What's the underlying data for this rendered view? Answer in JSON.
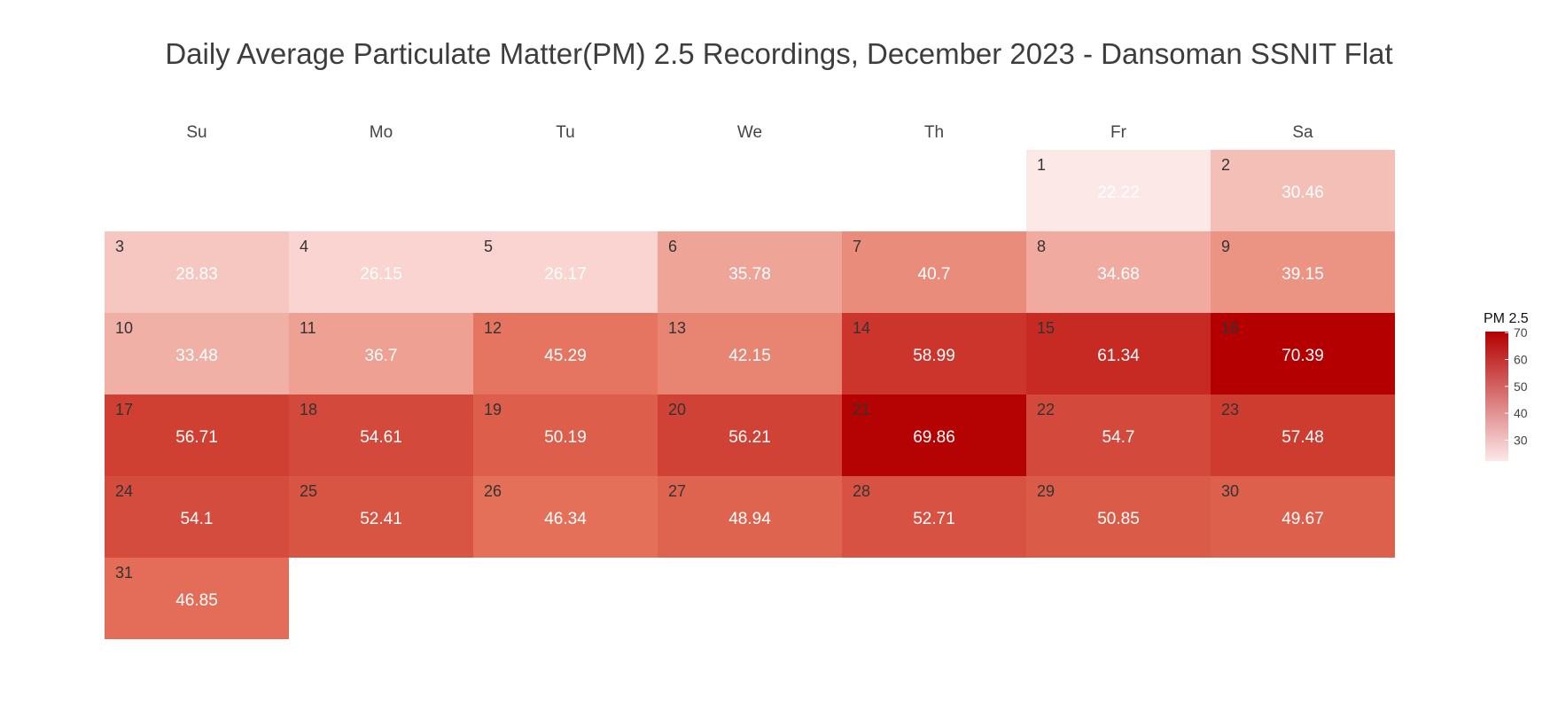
{
  "chart_data": {
    "type": "heatmap",
    "title": "Daily Average Particulate Matter(PM) 2.5 Recordings, December 2023 - Dansoman SSNIT Flat",
    "weekdays": [
      "Su",
      "Mo",
      "Tu",
      "We",
      "Th",
      "Fr",
      "Sa"
    ],
    "first_weekday_index": 5,
    "days": [
      1,
      2,
      3,
      4,
      5,
      6,
      7,
      8,
      9,
      10,
      11,
      12,
      13,
      14,
      15,
      16,
      17,
      18,
      19,
      20,
      21,
      22,
      23,
      24,
      25,
      26,
      27,
      28,
      29,
      30,
      31
    ],
    "values": [
      22.22,
      30.46,
      28.83,
      26.15,
      26.17,
      35.78,
      40.7,
      34.68,
      39.15,
      33.48,
      36.7,
      45.29,
      42.15,
      58.99,
      61.34,
      70.39,
      56.71,
      54.61,
      50.19,
      56.21,
      69.86,
      54.7,
      57.48,
      54.1,
      52.41,
      46.34,
      48.94,
      52.71,
      50.85,
      49.67,
      46.85
    ],
    "legend": {
      "title": "PM 2.5",
      "ticks": [
        30,
        40,
        50,
        60,
        70
      ],
      "placement": "right",
      "range": [
        22.22,
        70.39
      ]
    },
    "colors": {
      "low": "#fde8e8",
      "high": "#b40000",
      "day_label": "#333333",
      "value_label": "#ffffff"
    }
  }
}
